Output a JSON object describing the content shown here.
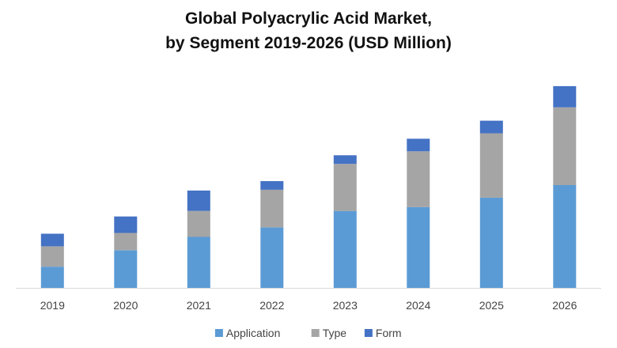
{
  "chart_data": {
    "type": "bar",
    "stacked": true,
    "title_lines": [
      "Global Polyacrylic Acid Market,",
      "by Segment 2019-2026 (USD Million)"
    ],
    "categories": [
      "2019",
      "2020",
      "2021",
      "2022",
      "2023",
      "2024",
      "2025",
      "2026"
    ],
    "series": [
      {
        "name": "Application",
        "color": "#5B9BD5",
        "values": [
          27,
          48,
          65,
          77,
          98,
          103,
          115,
          131
        ]
      },
      {
        "name": "Type",
        "color": "#A5A5A5",
        "values": [
          26,
          22,
          33,
          48,
          60,
          71,
          82,
          99
        ]
      },
      {
        "name": "Form",
        "color": "#4472C4",
        "values": [
          16,
          21,
          26,
          11,
          11,
          16,
          16,
          27
        ]
      }
    ],
    "ylim": [
      0,
      270
    ],
    "grid": false,
    "y_axis_shown": false,
    "legend_position": "bottom"
  }
}
